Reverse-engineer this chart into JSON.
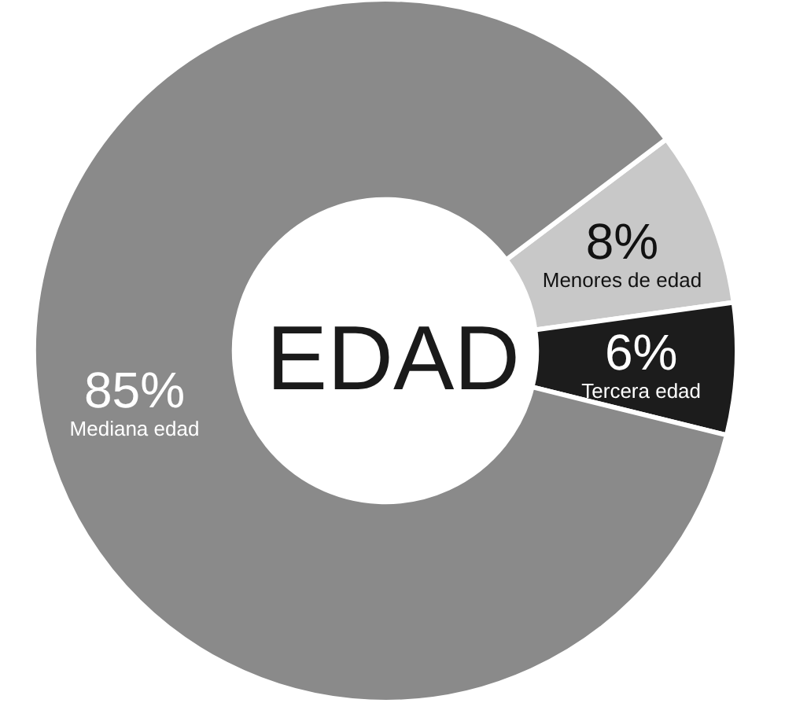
{
  "chart_data": {
    "type": "donut",
    "title": "EDAD",
    "categories": [
      "Menores de edad",
      "Tercera edad",
      "Mediana edad"
    ],
    "values": [
      8,
      6,
      85
    ],
    "value_labels": [
      "8%",
      "6%",
      "85%"
    ],
    "colors": [
      "#c8c8c8",
      "#1c1c1c",
      "#8a8a8a"
    ],
    "legend": false
  }
}
